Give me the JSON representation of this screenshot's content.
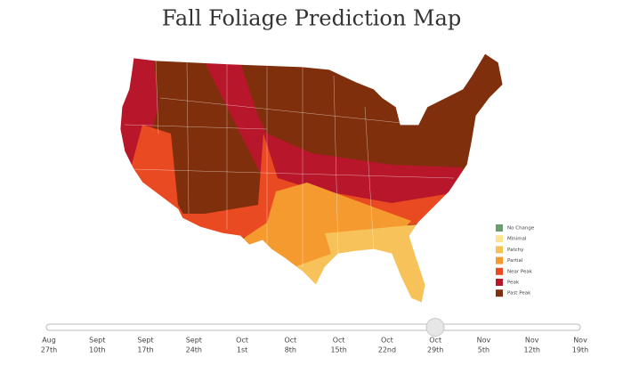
{
  "title": "Fall Foliage Prediction Map",
  "legend": [
    {
      "label": "No Change",
      "color": "#6a9b6e"
    },
    {
      "label": "Minimal",
      "color": "#fbe58f"
    },
    {
      "label": "Patchy",
      "color": "#f7c25a"
    },
    {
      "label": "Partial",
      "color": "#f59a2e"
    },
    {
      "label": "Near Peak",
      "color": "#ea4a21"
    },
    {
      "label": "Peak",
      "color": "#b8162b"
    },
    {
      "label": "Past Peak",
      "color": "#7f2f0b"
    }
  ],
  "timeline": [
    {
      "month": "Aug",
      "day": "27th"
    },
    {
      "month": "Sept",
      "day": "10th"
    },
    {
      "month": "Sept",
      "day": "17th"
    },
    {
      "month": "Sept",
      "day": "24th"
    },
    {
      "month": "Oct",
      "day": "1st"
    },
    {
      "month": "Oct",
      "day": "8th"
    },
    {
      "month": "Oct",
      "day": "15th"
    },
    {
      "month": "Oct",
      "day": "22nd"
    },
    {
      "month": "Oct",
      "day": "29th"
    },
    {
      "month": "Nov",
      "day": "5th"
    },
    {
      "month": "Nov",
      "day": "12th"
    },
    {
      "month": "Nov",
      "day": "19th"
    }
  ]
}
